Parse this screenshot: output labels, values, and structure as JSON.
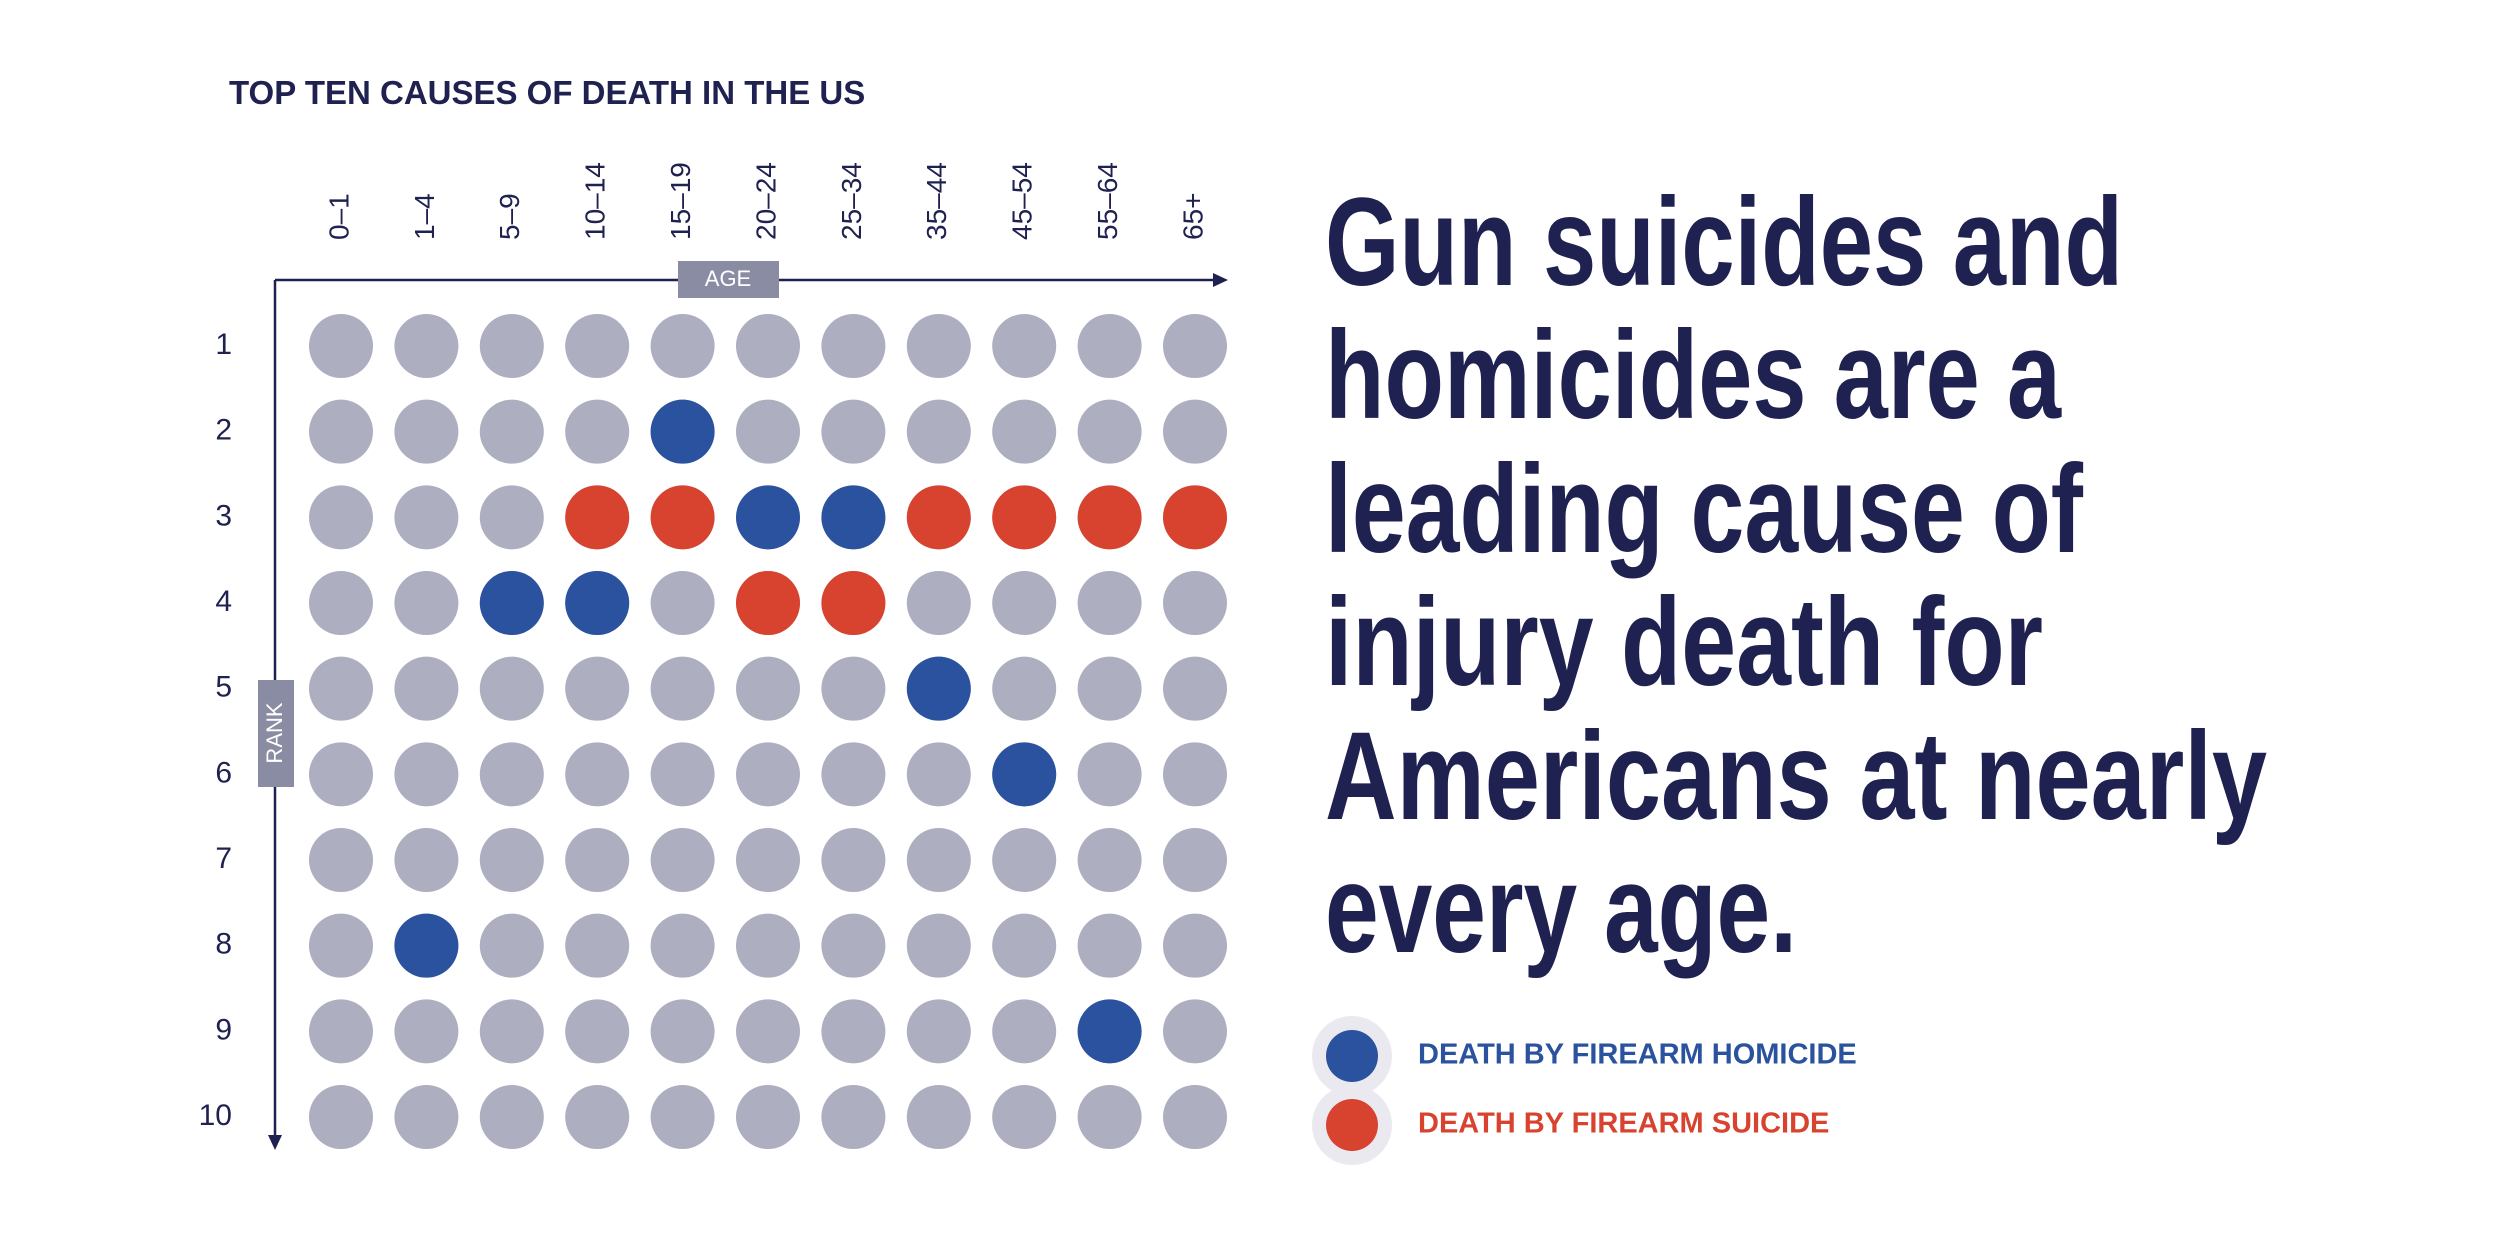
{
  "chart_data": {
    "type": "dot-matrix",
    "title": "TOP TEN CAUSES OF DEATH IN THE US",
    "x_label": "AGE",
    "y_label": "RANK",
    "categories": [
      "0–1",
      "1–4",
      "5–9",
      "10–14",
      "15–19",
      "20–24",
      "25–34",
      "35–44",
      "45–54",
      "55–64",
      "65+"
    ],
    "ylim": [
      1,
      10
    ],
    "y_inverted": true,
    "yticks": [
      1,
      2,
      3,
      4,
      5,
      6,
      7,
      8,
      9,
      10
    ],
    "dot_color": "#adaebf",
    "series": [
      {
        "name": "DEATH BY FIREARM HOMICIDE",
        "color": "#2a529f",
        "values": [
          null,
          8,
          4,
          4,
          2,
          3,
          3,
          5,
          6,
          9,
          null
        ]
      },
      {
        "name": "DEATH BY FIREARM SUICIDE",
        "color": "#d8432f",
        "values": [
          null,
          null,
          null,
          3,
          3,
          4,
          4,
          3,
          3,
          3,
          3
        ]
      }
    ],
    "headline": [
      "Gun suicides and",
      "homicides are a",
      "leading cause of",
      "injury death for",
      "Americans at nearly",
      "every age."
    ]
  }
}
